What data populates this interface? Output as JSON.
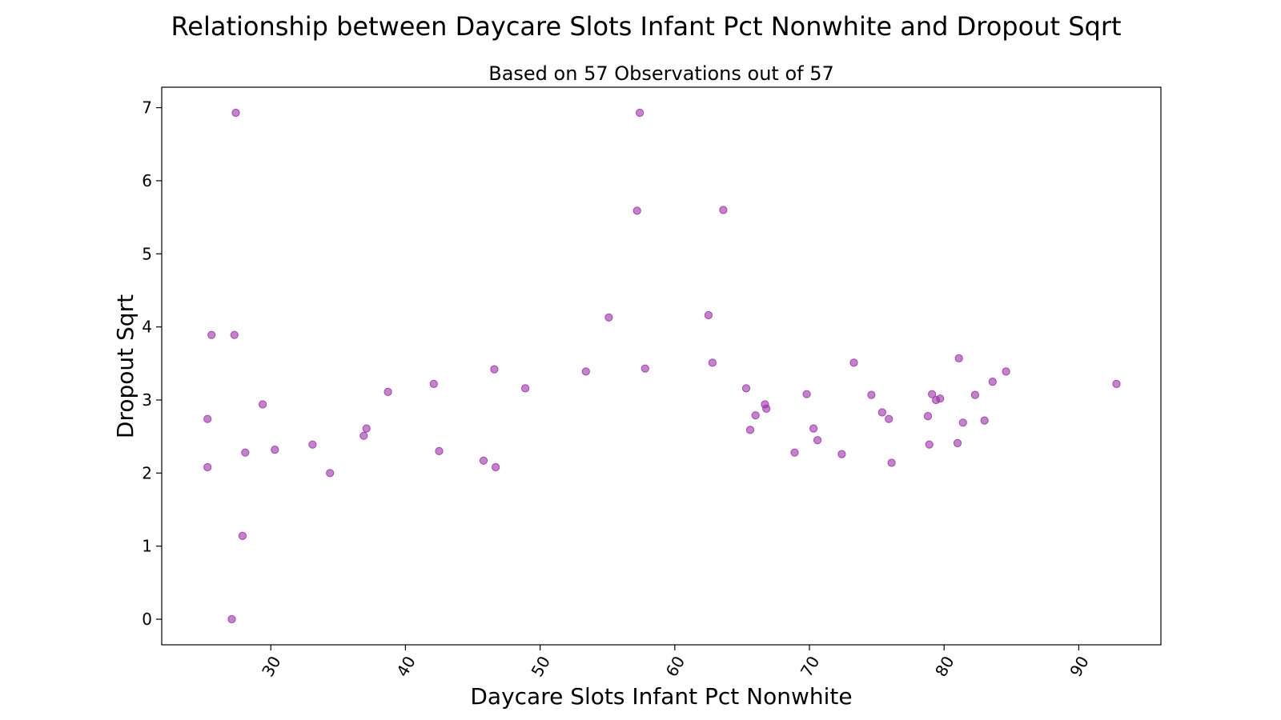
{
  "chart_data": {
    "type": "scatter",
    "title": "Relationship between Daycare Slots Infant Pct Nonwhite and Dropout Sqrt",
    "subtitle": "Based on 57 Observations out of 57",
    "xlabel": "Daycare Slots Infant Pct Nonwhite",
    "ylabel": "Dropout Sqrt",
    "xlim": [
      21.9,
      96.1
    ],
    "ylim": [
      -0.35,
      7.28
    ],
    "xticks": [
      30,
      40,
      50,
      60,
      70,
      80,
      90
    ],
    "xtick_labels": [
      "30",
      "40",
      "50",
      "60",
      "70",
      "80",
      "90"
    ],
    "yticks": [
      0,
      1,
      2,
      3,
      4,
      5,
      6,
      7
    ],
    "ytick_labels": [
      "0",
      "1",
      "2",
      "3",
      "4",
      "5",
      "6",
      "7"
    ],
    "grid": false,
    "marker_color": "#9b30a8",
    "points": [
      {
        "x": 25.3,
        "y": 2.74
      },
      {
        "x": 25.3,
        "y": 2.08
      },
      {
        "x": 25.6,
        "y": 3.89
      },
      {
        "x": 27.1,
        "y": 0.0
      },
      {
        "x": 27.3,
        "y": 3.89
      },
      {
        "x": 27.4,
        "y": 6.93
      },
      {
        "x": 27.9,
        "y": 1.14
      },
      {
        "x": 28.1,
        "y": 2.28
      },
      {
        "x": 29.4,
        "y": 2.94
      },
      {
        "x": 30.3,
        "y": 2.32
      },
      {
        "x": 33.1,
        "y": 2.39
      },
      {
        "x": 34.4,
        "y": 2.0
      },
      {
        "x": 36.9,
        "y": 2.51
      },
      {
        "x": 37.1,
        "y": 2.61
      },
      {
        "x": 38.7,
        "y": 3.11
      },
      {
        "x": 42.1,
        "y": 3.22
      },
      {
        "x": 42.5,
        "y": 2.3
      },
      {
        "x": 45.8,
        "y": 2.17
      },
      {
        "x": 46.6,
        "y": 3.42
      },
      {
        "x": 46.7,
        "y": 2.08
      },
      {
        "x": 48.9,
        "y": 3.16
      },
      {
        "x": 53.4,
        "y": 3.39
      },
      {
        "x": 55.1,
        "y": 4.13
      },
      {
        "x": 57.2,
        "y": 5.59
      },
      {
        "x": 57.4,
        "y": 6.93
      },
      {
        "x": 57.8,
        "y": 3.43
      },
      {
        "x": 62.5,
        "y": 4.16
      },
      {
        "x": 62.8,
        "y": 3.51
      },
      {
        "x": 63.6,
        "y": 5.6
      },
      {
        "x": 65.3,
        "y": 3.16
      },
      {
        "x": 65.6,
        "y": 2.59
      },
      {
        "x": 66.0,
        "y": 2.79
      },
      {
        "x": 66.7,
        "y": 2.94
      },
      {
        "x": 66.8,
        "y": 2.88
      },
      {
        "x": 68.9,
        "y": 2.28
      },
      {
        "x": 69.8,
        "y": 3.08
      },
      {
        "x": 70.3,
        "y": 2.61
      },
      {
        "x": 70.6,
        "y": 2.45
      },
      {
        "x": 72.4,
        "y": 2.26
      },
      {
        "x": 73.3,
        "y": 3.51
      },
      {
        "x": 74.6,
        "y": 3.07
      },
      {
        "x": 75.4,
        "y": 2.83
      },
      {
        "x": 75.9,
        "y": 2.74
      },
      {
        "x": 76.1,
        "y": 2.14
      },
      {
        "x": 78.8,
        "y": 2.78
      },
      {
        "x": 78.9,
        "y": 2.39
      },
      {
        "x": 79.1,
        "y": 3.08
      },
      {
        "x": 79.4,
        "y": 3.0
      },
      {
        "x": 79.7,
        "y": 3.02
      },
      {
        "x": 81.0,
        "y": 2.41
      },
      {
        "x": 81.1,
        "y": 3.57
      },
      {
        "x": 81.4,
        "y": 2.69
      },
      {
        "x": 82.3,
        "y": 3.07
      },
      {
        "x": 83.0,
        "y": 2.72
      },
      {
        "x": 83.6,
        "y": 3.25
      },
      {
        "x": 84.6,
        "y": 3.39
      },
      {
        "x": 92.8,
        "y": 3.22
      }
    ]
  }
}
